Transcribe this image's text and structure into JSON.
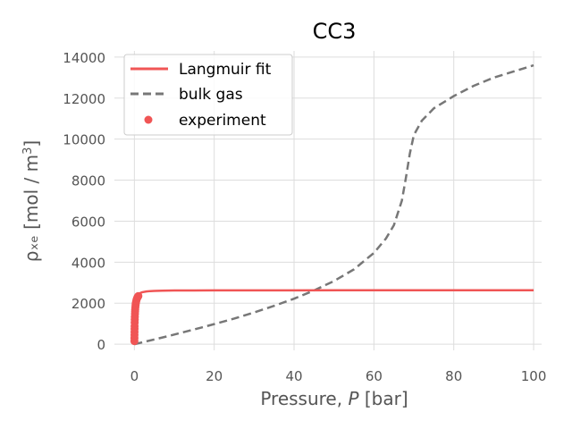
{
  "chart_data": {
    "type": "line",
    "title": "CC3",
    "xlabel_prefix": "Pressure, ",
    "xlabel_var": "P",
    "xlabel_suffix": " [bar]",
    "ylabel": "ρₓₑ [mol / m",
    "ylabel_sup": "3",
    "ylabel_end": "]",
    "xlim": [
      -5,
      102
    ],
    "ylim": [
      -300,
      14300
    ],
    "xticks": [
      0,
      20,
      40,
      60,
      80,
      100
    ],
    "yticks": [
      0,
      2000,
      4000,
      6000,
      8000,
      10000,
      12000,
      14000
    ],
    "grid": true,
    "legend_placement": "top-left",
    "colors": {
      "langmuir": "#f05555",
      "bulk": "#777777",
      "experiment": "#f05555"
    },
    "series": [
      {
        "name": "Langmuir fit",
        "style": "solid",
        "x": [
          0,
          0.1,
          0.2,
          0.3,
          0.5,
          0.7,
          1.0,
          1.5,
          2,
          3,
          4,
          5,
          7,
          10,
          15,
          20,
          30,
          40,
          60,
          80,
          100
        ],
        "y": [
          0,
          1350,
          1820,
          2040,
          2250,
          2350,
          2430,
          2500,
          2535,
          2570,
          2590,
          2600,
          2610,
          2618,
          2622,
          2625,
          2627,
          2628,
          2629,
          2630,
          2630
        ]
      },
      {
        "name": "bulk gas",
        "style": "dashed",
        "x": [
          0,
          5,
          10,
          15,
          20,
          25,
          30,
          35,
          40,
          45,
          50,
          55,
          60,
          63,
          65,
          67,
          68,
          69,
          70,
          72,
          75,
          80,
          85,
          90,
          95,
          100
        ],
        "y": [
          0,
          230,
          470,
          720,
          980,
          1250,
          1550,
          1870,
          2220,
          2620,
          3080,
          3650,
          4450,
          5150,
          5800,
          7000,
          8100,
          9300,
          10200,
          10900,
          11500,
          12100,
          12600,
          13000,
          13300,
          13600
        ]
      },
      {
        "name": "experiment",
        "style": "scatter",
        "x": [
          0.01,
          0.02,
          0.03,
          0.04,
          0.05,
          0.06,
          0.08,
          0.1,
          0.12,
          0.15,
          0.18,
          0.2,
          0.25,
          0.3,
          0.35,
          0.4,
          0.5,
          0.6,
          0.7,
          0.8,
          0.9,
          1.0
        ],
        "y": [
          150,
          300,
          450,
          600,
          750,
          880,
          1050,
          1200,
          1330,
          1480,
          1600,
          1680,
          1800,
          1900,
          1980,
          2040,
          2130,
          2200,
          2250,
          2290,
          2320,
          2350
        ]
      }
    ]
  }
}
